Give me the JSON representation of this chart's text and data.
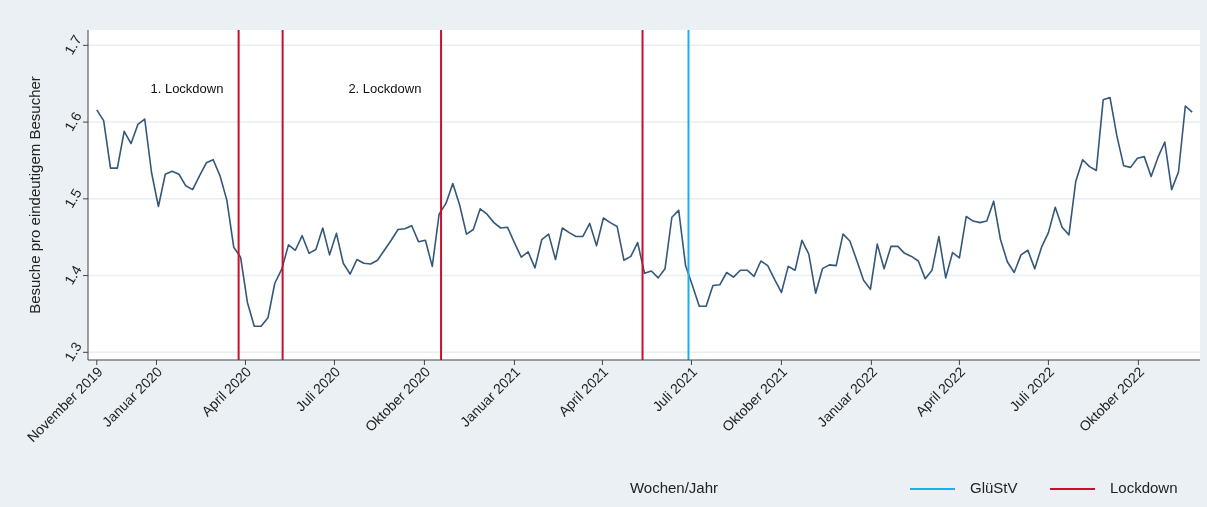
{
  "chart_data": {
    "type": "line",
    "xlabel": "Wochen/Jahr",
    "ylabel": "Besuche pro eindeutigem Besucher",
    "x": [
      "2019-11-01",
      "2019-11-08",
      "2019-11-15",
      "2019-11-22",
      "2019-11-29",
      "2019-12-06",
      "2019-12-13",
      "2019-12-20",
      "2019-12-27",
      "2020-01-03",
      "2020-01-10",
      "2020-01-17",
      "2020-01-24",
      "2020-01-31",
      "2020-02-07",
      "2020-02-14",
      "2020-02-21",
      "2020-02-28",
      "2020-03-06",
      "2020-03-13",
      "2020-03-20",
      "2020-03-27",
      "2020-04-03",
      "2020-04-10",
      "2020-04-17",
      "2020-04-24",
      "2020-05-01",
      "2020-05-08",
      "2020-05-15",
      "2020-05-22",
      "2020-05-29",
      "2020-06-05",
      "2020-06-12",
      "2020-06-19",
      "2020-06-26",
      "2020-07-03",
      "2020-07-10",
      "2020-07-17",
      "2020-07-24",
      "2020-07-31",
      "2020-08-07",
      "2020-08-14",
      "2020-08-21",
      "2020-08-28",
      "2020-09-04",
      "2020-09-11",
      "2020-09-18",
      "2020-09-25",
      "2020-10-02",
      "2020-10-09",
      "2020-10-16",
      "2020-10-23",
      "2020-10-30",
      "2020-11-06",
      "2020-11-13",
      "2020-11-20",
      "2020-11-27",
      "2020-12-04",
      "2020-12-11",
      "2020-12-18",
      "2020-12-25",
      "2021-01-01",
      "2021-01-08",
      "2021-01-15",
      "2021-01-22",
      "2021-01-29",
      "2021-02-05",
      "2021-02-12",
      "2021-02-19",
      "2021-02-26",
      "2021-03-05",
      "2021-03-12",
      "2021-03-19",
      "2021-03-26",
      "2021-04-02",
      "2021-04-09",
      "2021-04-16",
      "2021-04-23",
      "2021-04-30",
      "2021-05-07",
      "2021-05-14",
      "2021-05-21",
      "2021-05-28",
      "2021-06-04",
      "2021-06-11",
      "2021-06-18",
      "2021-06-25",
      "2021-07-02",
      "2021-07-09",
      "2021-07-16",
      "2021-07-23",
      "2021-07-30",
      "2021-08-06",
      "2021-08-13",
      "2021-08-20",
      "2021-08-27",
      "2021-09-03",
      "2021-09-10",
      "2021-09-17",
      "2021-09-24",
      "2021-10-01",
      "2021-10-08",
      "2021-10-15",
      "2021-10-22",
      "2021-10-29",
      "2021-11-05",
      "2021-11-12",
      "2021-11-19",
      "2021-11-26",
      "2021-12-03",
      "2021-12-10",
      "2021-12-17",
      "2021-12-24",
      "2021-12-31",
      "2022-01-07",
      "2022-01-14",
      "2022-01-21",
      "2022-01-28",
      "2022-02-04",
      "2022-02-11",
      "2022-02-18",
      "2022-02-25",
      "2022-03-04",
      "2022-03-11",
      "2022-03-18",
      "2022-03-25",
      "2022-04-01",
      "2022-04-08",
      "2022-04-15",
      "2022-04-22",
      "2022-04-29",
      "2022-05-06",
      "2022-05-13",
      "2022-05-20",
      "2022-05-27",
      "2022-06-03",
      "2022-06-10",
      "2022-06-17",
      "2022-06-24",
      "2022-07-01",
      "2022-07-08",
      "2022-07-15",
      "2022-07-22",
      "2022-07-29",
      "2022-08-05",
      "2022-08-12",
      "2022-08-19",
      "2022-08-26",
      "2022-09-02",
      "2022-09-09",
      "2022-09-16",
      "2022-09-23",
      "2022-09-30",
      "2022-10-07",
      "2022-10-14",
      "2022-10-21",
      "2022-10-28",
      "2022-11-04",
      "2022-11-11",
      "2022-11-18",
      "2022-11-25"
    ],
    "series": [
      {
        "color": "#34587a",
        "values": [
          1.616,
          1.602,
          1.54,
          1.54,
          1.588,
          1.572,
          1.597,
          1.604,
          1.534,
          1.49,
          1.532,
          1.536,
          1.532,
          1.517,
          1.512,
          1.53,
          1.547,
          1.551,
          1.53,
          1.498,
          1.437,
          1.424,
          1.365,
          1.334,
          1.334,
          1.345,
          1.39,
          1.408,
          1.44,
          1.433,
          1.452,
          1.429,
          1.434,
          1.462,
          1.427,
          1.455,
          1.416,
          1.402,
          1.421,
          1.416,
          1.415,
          1.42,
          1.433,
          1.446,
          1.46,
          1.461,
          1.465,
          1.444,
          1.446,
          1.412,
          1.48,
          1.494,
          1.52,
          1.492,
          1.454,
          1.46,
          1.487,
          1.48,
          1.469,
          1.462,
          1.463,
          1.443,
          1.424,
          1.431,
          1.41,
          1.447,
          1.454,
          1.421,
          1.462,
          1.456,
          1.451,
          1.451,
          1.468,
          1.439,
          1.475,
          1.469,
          1.464,
          1.42,
          1.425,
          1.443,
          1.403,
          1.406,
          1.397,
          1.409,
          1.476,
          1.485,
          1.413,
          1.387,
          1.36,
          1.36,
          1.387,
          1.388,
          1.404,
          1.398,
          1.407,
          1.407,
          1.399,
          1.419,
          1.413,
          1.395,
          1.378,
          1.412,
          1.407,
          1.446,
          1.428,
          1.377,
          1.409,
          1.414,
          1.413,
          1.454,
          1.445,
          1.42,
          1.394,
          1.382,
          1.441,
          1.409,
          1.438,
          1.438,
          1.429,
          1.425,
          1.419,
          1.396,
          1.407,
          1.451,
          1.397,
          1.43,
          1.423,
          1.477,
          1.471,
          1.469,
          1.471,
          1.497,
          1.447,
          1.418,
          1.404,
          1.427,
          1.433,
          1.409,
          1.437,
          1.456,
          1.489,
          1.463,
          1.453,
          1.523,
          1.551,
          1.542,
          1.537,
          1.629,
          1.632,
          1.582,
          1.543,
          1.541,
          1.553,
          1.555,
          1.529,
          1.554,
          1.574,
          1.512,
          1.535,
          1.621,
          1.613
        ]
      }
    ],
    "xlim": [
      "2019-10-23",
      "2022-12-03"
    ],
    "xticks": [
      {
        "value": "2019-11-01",
        "label": "November 2019"
      },
      {
        "value": "2020-01-01",
        "label": "Januar 2020"
      },
      {
        "value": "2020-04-01",
        "label": "April 2020"
      },
      {
        "value": "2020-07-01",
        "label": "Juli 2020"
      },
      {
        "value": "2020-10-01",
        "label": "Oktober 2020"
      },
      {
        "value": "2021-01-01",
        "label": "Januar 2021"
      },
      {
        "value": "2021-04-01",
        "label": "April 2021"
      },
      {
        "value": "2021-07-01",
        "label": "Juli 2021"
      },
      {
        "value": "2021-10-01",
        "label": "Oktober 2021"
      },
      {
        "value": "2022-01-01",
        "label": "Januar 2022"
      },
      {
        "value": "2022-04-01",
        "label": "April 2022"
      },
      {
        "value": "2022-07-01",
        "label": "Juli 2022"
      },
      {
        "value": "2022-10-01",
        "label": "Oktober 2022"
      }
    ],
    "ylim": [
      1.29,
      1.72
    ],
    "yticks": [
      1.3,
      1.4,
      1.5,
      1.6,
      1.7
    ],
    "grid": "y",
    "ref_lines": [
      {
        "axis": "x",
        "value": "2020-03-25",
        "label": "Lockdown",
        "color": "#c8102e"
      },
      {
        "axis": "x",
        "value": "2020-05-09",
        "color": "#c8102e"
      },
      {
        "axis": "x",
        "value": "2020-10-18",
        "color": "#c8102e"
      },
      {
        "axis": "x",
        "value": "2021-05-12",
        "color": "#c8102e"
      },
      {
        "axis": "x",
        "value": "2021-06-28",
        "label": "GlüStV",
        "color": "#1ab0f0"
      }
    ],
    "annotations": [
      "1. Lockdown",
      "2. Lockdown"
    ],
    "legend": "bottom right"
  }
}
